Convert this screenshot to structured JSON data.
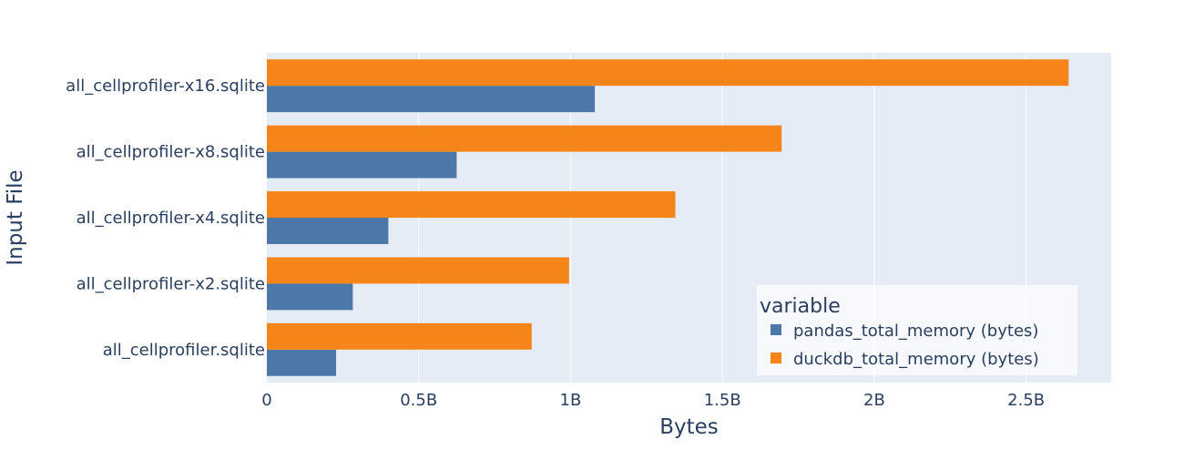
{
  "chart_data": {
    "type": "bar",
    "orientation": "horizontal",
    "barmode": "group",
    "categories": [
      "all_cellprofiler.sqlite",
      "all_cellprofiler-x2.sqlite",
      "all_cellprofiler-x4.sqlite",
      "all_cellprofiler-x8.sqlite",
      "all_cellprofiler-x16.sqlite"
    ],
    "series": [
      {
        "name": "pandas_total_memory (bytes)",
        "color": "#4c78a8",
        "values": [
          228000000,
          283000000,
          400000000,
          625000000,
          1080000000
        ]
      },
      {
        "name": "duckdb_total_memory (bytes)",
        "color": "#f58518",
        "values": [
          872000000,
          995000000,
          1345000000,
          1695000000,
          2640000000
        ]
      }
    ],
    "xlabel": "Bytes",
    "ylabel": "Input File",
    "xlim": [
      0,
      2780000000
    ],
    "xticks": [
      0,
      500000000,
      1000000000,
      1500000000,
      2000000000,
      2500000000
    ],
    "xtick_labels": [
      "0",
      "0.5B",
      "1B",
      "1.5B",
      "2B",
      "2.5B"
    ],
    "grid": true,
    "legend": {
      "title": "variable",
      "placement": "bottom-right"
    },
    "colors": {
      "plot_background": "#e5ecf6",
      "grid": "#ffffff",
      "text": "#2a3f5f"
    }
  }
}
